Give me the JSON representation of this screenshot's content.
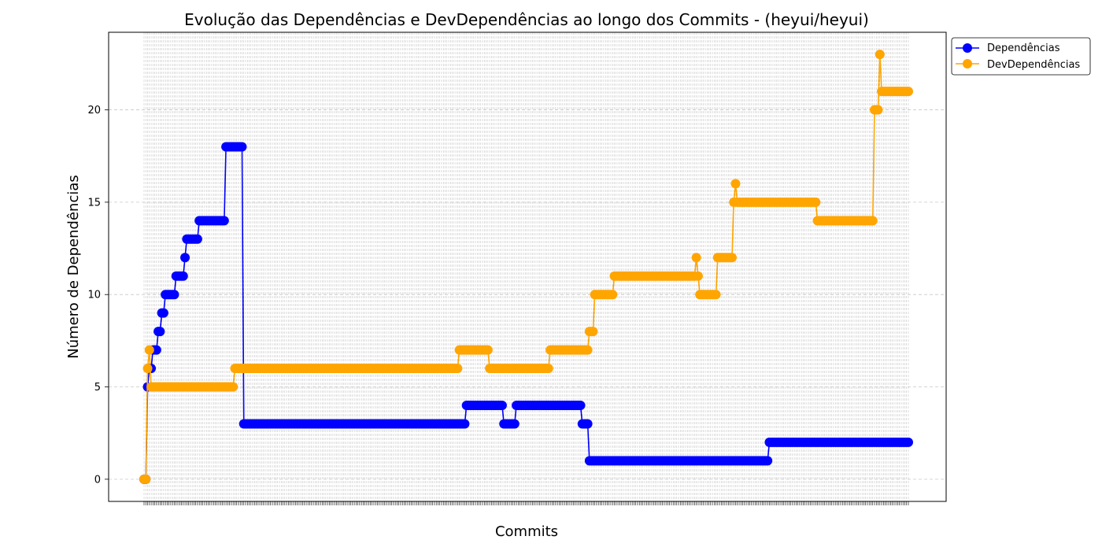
{
  "chart_data": {
    "type": "line",
    "title": "Evolução das Dependências e DevDependências ao longo dos Commits - (heyui/heyui)",
    "xlabel": "Commits",
    "ylabel": "Número de Dependências",
    "x_count": 430,
    "x_tick_labels_legible": false,
    "yticks": [
      0,
      5,
      10,
      15,
      20
    ],
    "ylim": [
      -1.2,
      24.2
    ],
    "grid": true,
    "legend_position": "upper-right-outside",
    "series": [
      {
        "name": "Dependências",
        "color": "#0000ff",
        "segments": [
          [
            0,
            1,
            0
          ],
          [
            2,
            2,
            5
          ],
          [
            3,
            4,
            6
          ],
          [
            5,
            7,
            7
          ],
          [
            8,
            8,
            8
          ],
          [
            9,
            9,
            8
          ],
          [
            10,
            11,
            9
          ],
          [
            12,
            12,
            10
          ],
          [
            13,
            17,
            10
          ],
          [
            18,
            18,
            11
          ],
          [
            19,
            20,
            11
          ],
          [
            21,
            22,
            11
          ],
          [
            23,
            23,
            12
          ],
          [
            24,
            25,
            13
          ],
          [
            26,
            30,
            13
          ],
          [
            31,
            35,
            14
          ],
          [
            36,
            45,
            14
          ],
          [
            46,
            50,
            18
          ],
          [
            51,
            55,
            18
          ],
          [
            56,
            64,
            3
          ],
          [
            65,
            160,
            3
          ],
          [
            161,
            180,
            3
          ],
          [
            181,
            189,
            4
          ],
          [
            190,
            201,
            4
          ],
          [
            202,
            203,
            3
          ],
          [
            204,
            208,
            3
          ],
          [
            209,
            230,
            4
          ],
          [
            231,
            245,
            4
          ],
          [
            246,
            247,
            3
          ],
          [
            248,
            249,
            3
          ],
          [
            250,
            350,
            1
          ],
          [
            351,
            420,
            2
          ],
          [
            421,
            429,
            2
          ]
        ]
      },
      {
        "name": "DevDependências",
        "color": "#ffa500",
        "segments": [
          [
            0,
            1,
            0
          ],
          [
            2,
            2,
            6
          ],
          [
            3,
            3,
            7
          ],
          [
            4,
            45,
            5
          ],
          [
            46,
            50,
            5
          ],
          [
            51,
            51,
            6
          ],
          [
            52,
            150,
            6
          ],
          [
            151,
            176,
            6
          ],
          [
            177,
            180,
            7
          ],
          [
            181,
            193,
            7
          ],
          [
            194,
            220,
            6
          ],
          [
            221,
            227,
            6
          ],
          [
            228,
            249,
            7
          ],
          [
            250,
            252,
            8
          ],
          [
            253,
            263,
            10
          ],
          [
            264,
            309,
            11
          ],
          [
            310,
            310,
            12
          ],
          [
            311,
            311,
            11
          ],
          [
            312,
            321,
            10
          ],
          [
            322,
            330,
            12
          ],
          [
            331,
            331,
            15
          ],
          [
            332,
            332,
            16
          ],
          [
            333,
            377,
            15
          ],
          [
            378,
            409,
            14
          ],
          [
            410,
            412,
            20
          ],
          [
            413,
            413,
            23
          ],
          [
            414,
            429,
            21
          ]
        ]
      }
    ]
  }
}
